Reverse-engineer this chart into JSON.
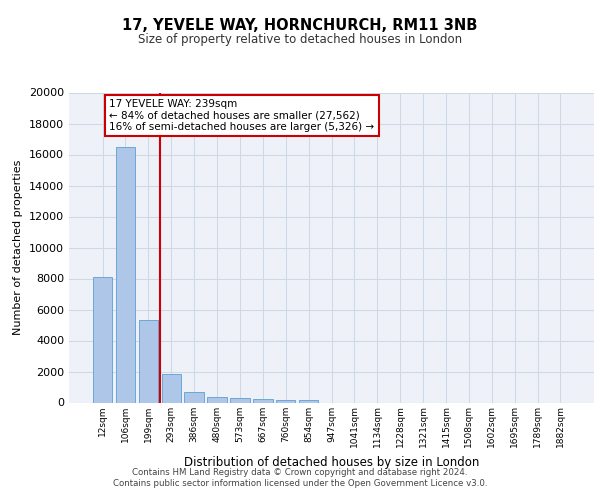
{
  "title1": "17, YEVELE WAY, HORNCHURCH, RM11 3NB",
  "title2": "Size of property relative to detached houses in London",
  "xlabel": "Distribution of detached houses by size in London",
  "ylabel": "Number of detached properties",
  "categories": [
    "12sqm",
    "106sqm",
    "199sqm",
    "293sqm",
    "386sqm",
    "480sqm",
    "573sqm",
    "667sqm",
    "760sqm",
    "854sqm",
    "947sqm",
    "1041sqm",
    "1134sqm",
    "1228sqm",
    "1321sqm",
    "1415sqm",
    "1508sqm",
    "1602sqm",
    "1695sqm",
    "1789sqm",
    "1882sqm"
  ],
  "values": [
    8100,
    16500,
    5300,
    1850,
    650,
    350,
    270,
    220,
    180,
    130,
    0,
    0,
    0,
    0,
    0,
    0,
    0,
    0,
    0,
    0,
    0
  ],
  "bar_color": "#aec6e8",
  "bar_edge_color": "#5a9fd4",
  "vline_color": "#cc0000",
  "annotation_text": "17 YEVELE WAY: 239sqm\n← 84% of detached houses are smaller (27,562)\n16% of semi-detached houses are larger (5,326) →",
  "annotation_box_color": "#cc0000",
  "ylim": [
    0,
    20000
  ],
  "yticks": [
    0,
    2000,
    4000,
    6000,
    8000,
    10000,
    12000,
    14000,
    16000,
    18000,
    20000
  ],
  "grid_color": "#d0d8e8",
  "bg_color": "#eef2f8",
  "footer1": "Contains HM Land Registry data © Crown copyright and database right 2024.",
  "footer2": "Contains public sector information licensed under the Open Government Licence v3.0."
}
